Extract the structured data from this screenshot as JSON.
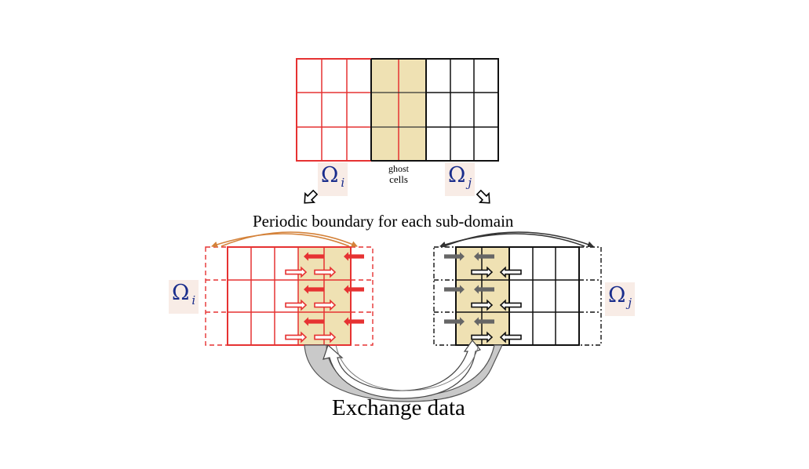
{
  "labels": {
    "ghost_line1": "ghost",
    "ghost_line2": "cells",
    "periodic": "Periodic boundary for each sub-domain",
    "exchange": "Exchange data",
    "omega": "Ω",
    "sub_i": "i",
    "sub_j": "j"
  },
  "grid": {
    "rows": 3,
    "ghost_columns": 2
  },
  "colors": {
    "domain_i": "#e63232",
    "domain_j": "#111111",
    "ghost_fill": "#efe1b3",
    "arrow_grey": "#666666",
    "arc_orange": "#d4823a",
    "omega_text": "#1a2d8c",
    "omega_bg": "#f8ece6"
  }
}
